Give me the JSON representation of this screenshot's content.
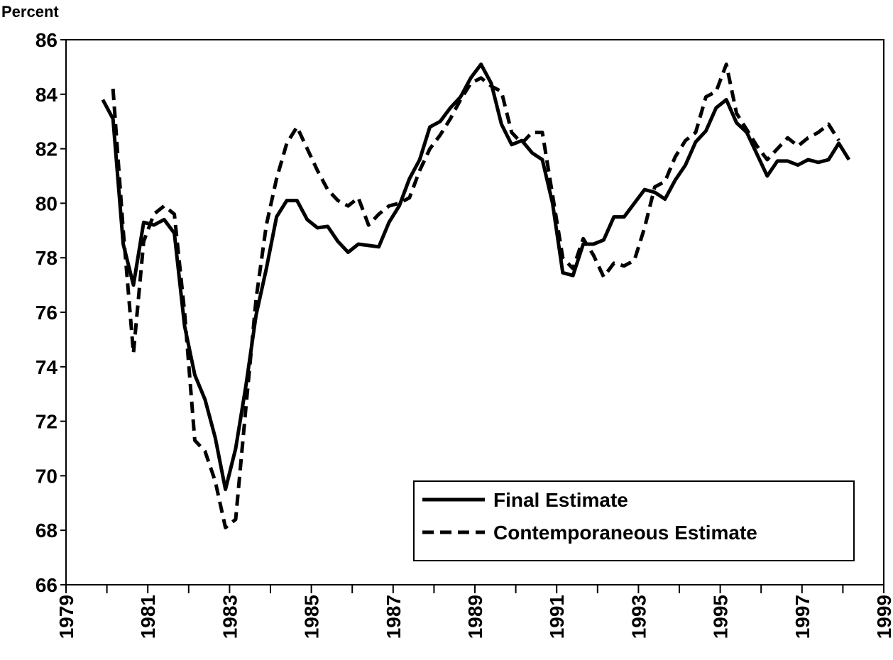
{
  "chart_data": {
    "type": "line",
    "y_label": "Percent",
    "x": [
      1979.9,
      1980.15,
      1980.4,
      1980.65,
      1980.9,
      1981.15,
      1981.4,
      1981.65,
      1981.9,
      1982.15,
      1982.4,
      1982.65,
      1982.9,
      1983.15,
      1983.4,
      1983.65,
      1983.9,
      1984.15,
      1984.4,
      1984.65,
      1984.9,
      1985.15,
      1985.4,
      1985.65,
      1985.9,
      1986.15,
      1986.4,
      1986.65,
      1986.9,
      1987.15,
      1987.4,
      1987.65,
      1987.9,
      1988.15,
      1988.4,
      1988.65,
      1988.9,
      1989.15,
      1989.4,
      1989.65,
      1989.9,
      1990.15,
      1990.4,
      1990.65,
      1990.9,
      1991.15,
      1991.4,
      1991.65,
      1991.9,
      1992.15,
      1992.4,
      1992.65,
      1992.9,
      1993.15,
      1993.4,
      1993.65,
      1993.9,
      1994.15,
      1994.4,
      1994.65,
      1994.9,
      1995.15,
      1995.4,
      1995.65,
      1995.9,
      1996.15,
      1996.4,
      1996.65,
      1996.9,
      1997.15,
      1997.4,
      1997.65,
      1997.9,
      1998.15
    ],
    "series": [
      {
        "name": "Final Estimate",
        "color": "#000000",
        "dash": "solid",
        "values": [
          83.8,
          83.1,
          78.5,
          77.0,
          79.3,
          79.2,
          79.4,
          78.9,
          75.5,
          73.7,
          72.8,
          71.4,
          69.5,
          71.0,
          73.3,
          75.9,
          77.6,
          79.5,
          80.1,
          80.1,
          79.4,
          79.1,
          79.15,
          78.6,
          78.2,
          78.5,
          78.45,
          78.4,
          79.3,
          79.9,
          80.9,
          81.6,
          82.8,
          83.0,
          83.5,
          83.9,
          84.6,
          85.1,
          84.4,
          82.9,
          82.15,
          82.3,
          81.85,
          81.6,
          80.0,
          77.45,
          77.35,
          78.5,
          78.5,
          78.65,
          79.5,
          79.5,
          80.0,
          80.5,
          80.4,
          80.15,
          80.85,
          81.4,
          82.25,
          82.65,
          83.5,
          83.8,
          82.95,
          82.6,
          81.8,
          81.0,
          81.55,
          81.55,
          81.4,
          81.6,
          81.5,
          81.6,
          82.2,
          81.6
        ]
      },
      {
        "name": "Contemporaneous Estimate",
        "color": "#000000",
        "dash": "dashed",
        "values": [
          null,
          84.2,
          79.0,
          74.5,
          78.6,
          79.6,
          79.9,
          79.6,
          76.0,
          71.3,
          70.9,
          69.8,
          68.1,
          68.4,
          72.5,
          76.5,
          79.2,
          80.9,
          82.2,
          82.8,
          82.0,
          81.2,
          80.5,
          80.1,
          79.9,
          80.2,
          79.2,
          79.6,
          79.9,
          80.0,
          80.2,
          81.2,
          82.0,
          82.5,
          83.1,
          83.8,
          84.4,
          84.6,
          84.3,
          84.1,
          82.6,
          82.2,
          82.6,
          82.6,
          80.3,
          78.0,
          77.6,
          78.7,
          78.1,
          77.3,
          77.8,
          77.7,
          77.9,
          79.1,
          80.6,
          80.8,
          81.7,
          82.3,
          82.6,
          83.9,
          84.1,
          85.1,
          83.3,
          82.7,
          82.1,
          81.6,
          82.0,
          82.4,
          82.1,
          82.4,
          82.6,
          82.9,
          82.3,
          null
        ]
      }
    ],
    "xlim": [
      1979,
      1999
    ],
    "xticks": [
      1979,
      1981,
      1983,
      1985,
      1987,
      1989,
      1991,
      1993,
      1995,
      1997,
      1999
    ],
    "xminorticks": [
      1980,
      1982,
      1984,
      1986,
      1988,
      1990,
      1992,
      1994,
      1996,
      1998
    ],
    "ylim": [
      66,
      86
    ],
    "yticks": [
      66,
      68,
      70,
      72,
      74,
      76,
      78,
      80,
      82,
      84,
      86
    ],
    "legend": "lower right",
    "grid": false
  }
}
